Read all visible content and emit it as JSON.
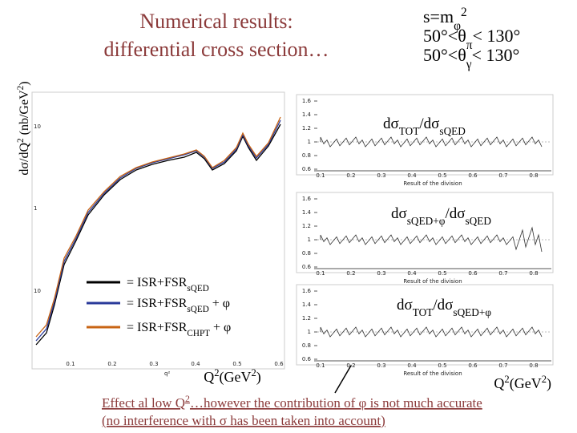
{
  "title": [
    "Numerical results:",
    "differential cross section…"
  ],
  "conditions": [
    [
      {
        "t": "s=m"
      },
      {
        "sub": "φ"
      },
      {
        "sup": "2"
      }
    ],
    [
      {
        "t": "50°<θ"
      },
      {
        "sub": "π"
      },
      {
        "t": "< 130°"
      }
    ],
    [
      {
        "t": "50°<θ"
      },
      {
        "sub": "γ"
      },
      {
        "t": "< 130°"
      }
    ]
  ],
  "main_plot": {
    "y_label": [
      {
        "t": "dσ/dQ"
      },
      {
        "sup": "2"
      },
      {
        "t": " (nb/GeV"
      },
      {
        "sup": "2"
      },
      {
        "t": ")"
      }
    ],
    "yticks": [
      "10",
      "1",
      "10"
    ],
    "xticks": [
      "0.1",
      "0.2",
      "0.3",
      "0.4",
      "0.5",
      "0.6"
    ],
    "axis_tag": "q²",
    "x_label": [
      {
        "t": "Q"
      },
      {
        "sup": "2"
      },
      {
        "t": "(GeV"
      },
      {
        "sup": "2"
      },
      {
        "t": ")"
      }
    ]
  },
  "legend": [
    {
      "color": "#000000",
      "label": [
        {
          "t": "= ISR+FSR"
        },
        {
          "sub": "sQED"
        }
      ]
    },
    {
      "color": "#2a3a9a",
      "label": [
        {
          "t": "= ISR+FSR"
        },
        {
          "sub": "sQED"
        },
        {
          "t": " + φ"
        }
      ]
    },
    {
      "color": "#c86414",
      "label": [
        {
          "t": "= ISR+FSR"
        },
        {
          "sub": "CHPT"
        },
        {
          "t": " + φ"
        }
      ]
    }
  ],
  "ratio_panels": [
    {
      "label": [
        {
          "t": "dσ"
        },
        {
          "sub": "TOT"
        },
        {
          "t": "/dσ"
        },
        {
          "sub": "sQED"
        }
      ],
      "yticks": [
        "1.6",
        "1.4",
        "1.2",
        "1",
        "0.8",
        "0.6"
      ],
      "xticks": [
        "0.1",
        "0.2",
        "0.3",
        "0.4",
        "0.5",
        "0.6",
        "0.7",
        "0.8"
      ],
      "caption": "Result of the division"
    },
    {
      "label": [
        {
          "t": "dσ"
        },
        {
          "sub": "sQED+φ"
        },
        {
          "t": "/dσ"
        },
        {
          "sub": "sQED"
        }
      ],
      "yticks": [
        "1.6",
        "1.4",
        "1.2",
        "1",
        "0.8",
        "0.6"
      ],
      "xticks": [
        "0.1",
        "0.2",
        "0.3",
        "0.4",
        "0.5",
        "0.6",
        "0.7",
        "0.8"
      ],
      "caption": "Result of the division"
    },
    {
      "label": [
        {
          "t": "dσ"
        },
        {
          "sub": "TOT"
        },
        {
          "t": "/dσ"
        },
        {
          "sub": "sQED+φ"
        }
      ],
      "yticks": [
        "1.6",
        "1.4",
        "1.2",
        "1",
        "0.8",
        "0.6"
      ],
      "xticks": [
        "0.1",
        "0.2",
        "0.3",
        "0.4",
        "0.5",
        "0.6",
        "0.7",
        "0.8"
      ],
      "caption": "Result of the division"
    }
  ],
  "ratio_x_label": [
    {
      "t": "Q"
    },
    {
      "sup": "2"
    },
    {
      "t": "(GeV"
    },
    {
      "sup": "2"
    },
    {
      "t": ")"
    }
  ],
  "footnote": [
    [
      {
        "t": "Effect al low Q"
      },
      {
        "sup": "2"
      },
      {
        "t": "…however the contribution of φ is not much accurate"
      }
    ],
    [
      {
        "t": "(no interference with σ has been taken into account)"
      }
    ]
  ]
}
